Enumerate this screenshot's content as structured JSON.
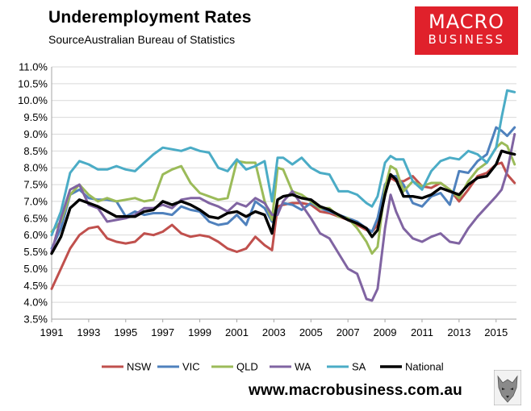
{
  "header": {
    "title": "Underemployment Rates",
    "subtitle": "SourceAustralian Bureau of Statistics"
  },
  "logo": {
    "line1": "MACRO",
    "line2": "BUSINESS",
    "color": "#e0212b"
  },
  "footer": {
    "url": "www.macrobusiness.com.au",
    "mascot_icon": "wolf-icon"
  },
  "chart_data": {
    "type": "line",
    "title": "Underemployment Rates",
    "ylim": [
      3.5,
      11.0
    ],
    "yticks": [
      "3.5%",
      "4.0%",
      "4.5%",
      "5.0%",
      "5.5%",
      "6.0%",
      "6.5%",
      "7.0%",
      "7.5%",
      "8.0%",
      "8.5%",
      "9.0%",
      "9.5%",
      "10.0%",
      "10.5%",
      "11.0%"
    ],
    "xlim": [
      1991.0,
      2016.1
    ],
    "xticks": [
      "1991",
      "1993",
      "1995",
      "1997",
      "1999",
      "2001",
      "2003",
      "2005",
      "2007",
      "2009",
      "2011",
      "2013",
      "2015"
    ],
    "grid": true,
    "legend": "bottom",
    "x": [
      1991.0,
      1991.5,
      1992.0,
      1992.5,
      1993.0,
      1993.5,
      1994.0,
      1994.5,
      1995.0,
      1995.5,
      1996.0,
      1996.5,
      1997.0,
      1997.5,
      1998.0,
      1998.5,
      1999.0,
      1999.5,
      2000.0,
      2000.5,
      2001.0,
      2001.5,
      2002.0,
      2002.5,
      2002.9,
      2003.2,
      2003.5,
      2004.0,
      2004.5,
      2005.0,
      2005.5,
      2006.0,
      2006.5,
      2007.0,
      2007.5,
      2008.0,
      2008.3,
      2008.6,
      2009.0,
      2009.3,
      2009.6,
      2010.0,
      2010.5,
      2011.0,
      2011.5,
      2012.0,
      2012.5,
      2013.0,
      2013.5,
      2014.0,
      2014.5,
      2015.0,
      2015.3,
      2015.6,
      2016.0
    ],
    "series": [
      {
        "name": "NSW",
        "color": "#c0504d",
        "values": [
          4.4,
          5.0,
          5.6,
          6.0,
          6.2,
          6.25,
          5.9,
          5.8,
          5.75,
          5.8,
          6.05,
          6.0,
          6.1,
          6.3,
          6.05,
          5.95,
          6.0,
          5.95,
          5.8,
          5.6,
          5.5,
          5.6,
          5.95,
          5.7,
          5.55,
          6.85,
          6.9,
          6.95,
          6.95,
          6.9,
          6.7,
          6.65,
          6.55,
          6.45,
          6.3,
          6.15,
          6.1,
          6.3,
          7.3,
          7.7,
          7.6,
          7.6,
          7.75,
          7.45,
          7.4,
          7.55,
          7.35,
          7.0,
          7.35,
          7.75,
          7.85,
          8.1,
          8.15,
          7.8,
          7.55
        ]
      },
      {
        "name": "VIC",
        "color": "#4f81bd",
        "values": [
          5.6,
          6.2,
          7.2,
          7.35,
          7.1,
          7.05,
          7.05,
          7.0,
          6.55,
          6.7,
          6.6,
          6.65,
          6.65,
          6.6,
          6.85,
          6.75,
          6.7,
          6.4,
          6.3,
          6.35,
          6.6,
          6.3,
          7.0,
          6.8,
          6.4,
          6.7,
          6.95,
          6.9,
          6.75,
          6.95,
          6.8,
          6.7,
          6.6,
          6.5,
          6.4,
          6.2,
          6.1,
          6.5,
          7.5,
          7.75,
          7.75,
          7.5,
          6.95,
          6.85,
          7.15,
          7.25,
          6.9,
          7.9,
          7.85,
          8.2,
          8.4,
          9.2,
          9.1,
          8.95,
          9.2
        ]
      },
      {
        "name": "QLD",
        "color": "#9bbb59",
        "values": [
          6.1,
          6.4,
          7.2,
          7.5,
          7.2,
          7.0,
          7.1,
          7.0,
          7.05,
          7.1,
          7.0,
          7.05,
          7.8,
          7.95,
          8.05,
          7.55,
          7.25,
          7.15,
          7.05,
          7.1,
          8.2,
          8.15,
          8.15,
          7.0,
          6.45,
          8.0,
          7.95,
          7.3,
          7.2,
          7.0,
          6.8,
          6.8,
          6.55,
          6.5,
          6.2,
          5.8,
          5.45,
          5.65,
          7.4,
          8.05,
          7.95,
          7.3,
          7.6,
          7.45,
          7.55,
          7.55,
          7.35,
          7.1,
          7.6,
          7.95,
          8.15,
          8.6,
          8.75,
          8.65,
          8.1
        ]
      },
      {
        "name": "WA",
        "color": "#8064a2",
        "values": [
          5.5,
          6.5,
          7.35,
          7.5,
          6.9,
          6.8,
          6.4,
          6.45,
          6.5,
          6.6,
          6.8,
          6.8,
          6.9,
          6.8,
          7.05,
          7.1,
          7.1,
          6.95,
          6.85,
          6.7,
          6.95,
          6.85,
          7.1,
          6.95,
          6.6,
          6.6,
          7.0,
          7.3,
          6.9,
          6.5,
          6.05,
          5.9,
          5.45,
          5.0,
          4.85,
          4.1,
          4.05,
          4.4,
          6.2,
          7.2,
          6.7,
          6.2,
          5.9,
          5.8,
          5.95,
          6.05,
          5.8,
          5.75,
          6.2,
          6.55,
          6.85,
          7.15,
          7.35,
          7.9,
          9.0
        ]
      },
      {
        "name": "SA",
        "color": "#4bacc6",
        "values": [
          6.0,
          6.7,
          7.85,
          8.2,
          8.1,
          7.95,
          7.95,
          8.05,
          7.95,
          7.9,
          8.15,
          8.4,
          8.6,
          8.55,
          8.5,
          8.6,
          8.5,
          8.45,
          8.0,
          7.9,
          8.25,
          7.95,
          8.05,
          8.2,
          7.0,
          8.3,
          8.3,
          8.1,
          8.3,
          8.0,
          7.85,
          7.8,
          7.3,
          7.3,
          7.2,
          6.95,
          6.85,
          7.15,
          8.15,
          8.35,
          8.25,
          8.25,
          7.6,
          7.35,
          7.9,
          8.2,
          8.3,
          8.25,
          8.5,
          8.4,
          8.15,
          8.6,
          9.5,
          10.3,
          10.25
        ]
      },
      {
        "name": "National",
        "color": "#000000",
        "values": [
          5.45,
          5.95,
          6.8,
          7.05,
          6.95,
          6.85,
          6.7,
          6.55,
          6.55,
          6.55,
          6.7,
          6.75,
          7.0,
          6.9,
          7.0,
          6.9,
          6.75,
          6.55,
          6.5,
          6.65,
          6.7,
          6.55,
          6.7,
          6.6,
          6.05,
          7.05,
          7.15,
          7.2,
          7.1,
          7.05,
          6.85,
          6.75,
          6.6,
          6.45,
          6.35,
          6.2,
          5.95,
          6.15,
          7.2,
          7.8,
          7.65,
          7.15,
          7.15,
          7.1,
          7.2,
          7.4,
          7.3,
          7.2,
          7.5,
          7.7,
          7.75,
          8.1,
          8.5,
          8.45,
          8.4
        ]
      }
    ]
  }
}
